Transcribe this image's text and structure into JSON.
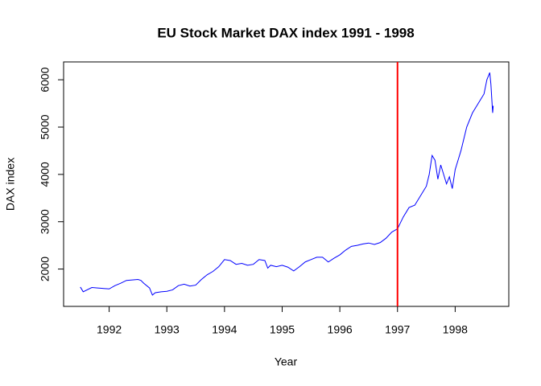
{
  "chart_data": {
    "type": "line",
    "title": "EU Stock Market DAX index 1991 - 1998",
    "x_label": "Year",
    "y_label": "DAX index",
    "xlim": [
      1991.21,
      1998.93
    ],
    "ylim": [
      1211,
      6377
    ],
    "xticks": [
      1992,
      1993,
      1994,
      1995,
      1996,
      1997,
      1998
    ],
    "yticks": [
      2000,
      3000,
      4000,
      5000,
      6000
    ],
    "vline": 1997,
    "vline_color": "#ff0000",
    "series": [
      {
        "name": "DAX",
        "color": "#0000ff",
        "x": [
          1991.5,
          1991.55,
          1991.7,
          1991.8,
          1992.0,
          1992.1,
          1992.2,
          1992.3,
          1992.4,
          1992.5,
          1992.55,
          1992.6,
          1992.7,
          1992.75,
          1992.8,
          1992.9,
          1993.0,
          1993.1,
          1993.2,
          1993.3,
          1993.4,
          1993.5,
          1993.6,
          1993.7,
          1993.8,
          1993.9,
          1994.0,
          1994.1,
          1994.2,
          1994.3,
          1994.4,
          1994.5,
          1994.6,
          1994.7,
          1994.75,
          1994.8,
          1994.9,
          1995.0,
          1995.1,
          1995.2,
          1995.3,
          1995.4,
          1995.5,
          1995.6,
          1995.7,
          1995.8,
          1995.9,
          1996.0,
          1996.1,
          1996.2,
          1996.3,
          1996.4,
          1996.5,
          1996.6,
          1996.7,
          1996.8,
          1996.9,
          1997.0,
          1997.1,
          1997.2,
          1997.3,
          1997.4,
          1997.5,
          1997.55,
          1997.6,
          1997.65,
          1997.7,
          1997.75,
          1997.8,
          1997.85,
          1997.9,
          1997.95,
          1998.0,
          1998.05,
          1998.1,
          1998.2,
          1998.3,
          1998.4,
          1998.5,
          1998.55,
          1998.6,
          1998.62,
          1998.65,
          1998.66
        ],
        "values": [
          1620,
          1520,
          1610,
          1600,
          1580,
          1650,
          1700,
          1760,
          1770,
          1780,
          1760,
          1700,
          1600,
          1450,
          1500,
          1520,
          1530,
          1560,
          1650,
          1680,
          1640,
          1660,
          1780,
          1880,
          1950,
          2050,
          2200,
          2180,
          2100,
          2120,
          2080,
          2100,
          2200,
          2180,
          2020,
          2080,
          2050,
          2080,
          2040,
          1960,
          2050,
          2150,
          2200,
          2250,
          2250,
          2150,
          2230,
          2300,
          2400,
          2480,
          2500,
          2530,
          2550,
          2520,
          2560,
          2650,
          2780,
          2850,
          3100,
          3300,
          3350,
          3550,
          3750,
          4000,
          4400,
          4300,
          3900,
          4200,
          4000,
          3800,
          3950,
          3700,
          4100,
          4300,
          4500,
          5000,
          5300,
          5500,
          5700,
          6000,
          6150,
          5900,
          5300,
          5450
        ]
      }
    ]
  }
}
